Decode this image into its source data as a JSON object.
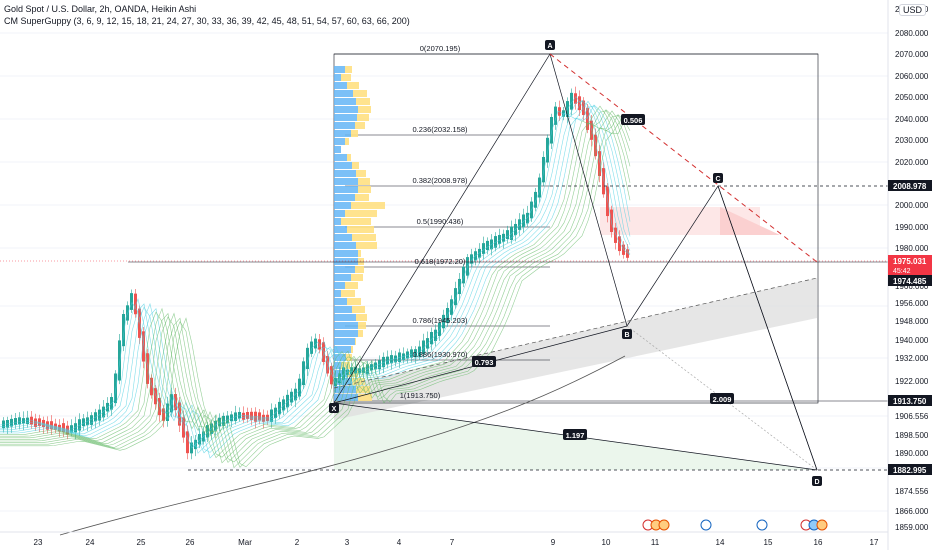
{
  "legend": {
    "title": "Gold Spot / U.S. Dollar, 2h, OANDA, Heikin Ashi",
    "indicator": "CM SuperGuppy (3, 6, 9, 12, 15, 18, 21, 24, 27, 30, 33, 36, 39, 42, 45, 48, 51, 54, 57, 60, 63, 66, 200)"
  },
  "currency": "USD",
  "price_axis": {
    "ticks": [
      "2080.000",
      "2070.000",
      "2060.000",
      "2050.000",
      "2040.000",
      "2030.000",
      "2020.000",
      "2010.000",
      "2000.000",
      "1990.000",
      "1980.000",
      "1966.000",
      "1956.000",
      "1948.000",
      "1940.000",
      "1932.000",
      "1922.000",
      "1914.000",
      "1906.556",
      "1898.500",
      "1890.000",
      "1882.995",
      "1874.556",
      "1866.000",
      "1859.000"
    ],
    "top_partial": "2090.000",
    "badges": [
      {
        "label": "2008.978",
        "kind": "level"
      },
      {
        "label": "1975.031",
        "sub": "45:42",
        "kind": "current"
      },
      {
        "label": "1974.485",
        "kind": "level"
      },
      {
        "label": "1913.750",
        "kind": "level"
      },
      {
        "label": "1882.995",
        "kind": "level"
      }
    ]
  },
  "time_axis": {
    "labels": [
      "23",
      "24",
      "25",
      "26",
      "Mar",
      "2",
      "3",
      "4",
      "7",
      "9",
      "10",
      "11",
      "14",
      "15",
      "16",
      "17"
    ]
  },
  "pattern": {
    "points": [
      "X",
      "A",
      "B",
      "C",
      "D"
    ],
    "ratios": [
      "0.506",
      "0.793",
      "2.009",
      "1.197"
    ]
  },
  "fib_levels": [
    {
      "label": "0(2070.195)"
    },
    {
      "label": "0.236(2032.158)"
    },
    {
      "label": "0.382(2008.978)"
    },
    {
      "label": "0.5(1990.436)"
    },
    {
      "label": "0.618(1972.20)"
    },
    {
      "label": "0.786(1945.203)"
    },
    {
      "label": "0.886(1930.970)"
    },
    {
      "label": "1(1913.750)"
    }
  ],
  "colors": {
    "bull": "#26a69a",
    "bear": "#ef5350",
    "line": "#131722",
    "current": "#f23645",
    "guppy_fast": "#4dd0e1",
    "guppy_slow": "#66bb6a"
  }
}
